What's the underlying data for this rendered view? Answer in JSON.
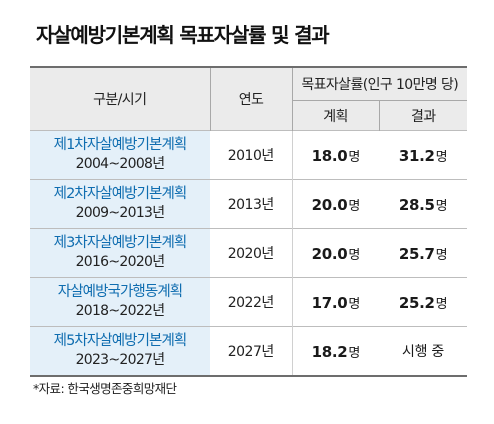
{
  "title": "자살예방기본계획 목표자살률 및 결과",
  "table": {
    "headers": {
      "category": "구분/시기",
      "year": "연도",
      "target_group": "목표자살률(인구 10만명 당)",
      "plan": "계획",
      "result": "결과"
    },
    "unit": "명",
    "rows": [
      {
        "name": "제1차자살예방기본계획",
        "period": "2004~2008년",
        "year": "2010년",
        "plan": "18.0",
        "result": "31.2"
      },
      {
        "name": "제2차자살예방기본계획",
        "period": "2009~2013년",
        "year": "2013년",
        "plan": "20.0",
        "result": "28.5"
      },
      {
        "name": "제3차자살예방기본계획",
        "period": "2016~2020년",
        "year": "2020년",
        "plan": "20.0",
        "result": "25.7"
      },
      {
        "name": "자살예방국가행동계획",
        "period": "2018~2022년",
        "year": "2022년",
        "plan": "17.0",
        "result": "25.2"
      },
      {
        "name": "제5차자살예방기본계획",
        "period": "2023~2027년",
        "year": "2027년",
        "plan": "18.2",
        "result_text": "시행 중"
      }
    ]
  },
  "source": "*자료: 한국생명존중희망재단"
}
